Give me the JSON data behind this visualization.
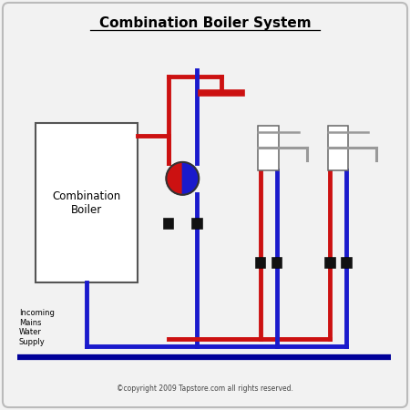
{
  "title": "Combination Boiler System",
  "copyright": "©copyright 2009 Tapstore.com all rights reserved.",
  "boiler_label": "Combination\nBoiler",
  "incoming_label": "Incoming\nMains\nWater\nSupply",
  "hot_color": "#cc1111",
  "cold_color": "#1a1acc",
  "pipe_lw": 3.5,
  "valve_color": "#111111",
  "bg_color": "#f2f2f2",
  "border_color": "#bbbbbb",
  "faucet_color": "#999999"
}
